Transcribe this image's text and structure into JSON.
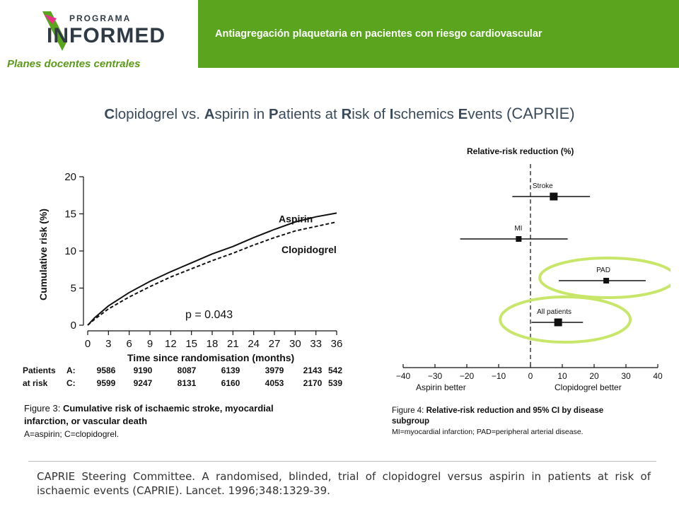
{
  "header": {
    "logo_top": "PROGRAMA",
    "logo_main": "INFORMED",
    "subtitle": "Planes docentes centrales",
    "title": "Antiagregación plaquetaria en pacientes con riesgo cardiovascular",
    "colors": {
      "accent": "#5aa51d",
      "subtitle": "#5c9a1b",
      "logo_dark": "#2f3a44"
    }
  },
  "slide_title": {
    "w1_initial": "C",
    "w1_rest": "lopidogrel vs. ",
    "w2_initial": "A",
    "w2_rest": "spirin in ",
    "w3_initial": "P",
    "w3_rest": "atients at ",
    "w4_initial": "R",
    "w4_rest": "isk of ",
    "w5_initial": "I",
    "w5_rest": "schemics ",
    "w6_initial": "E",
    "w6_rest": "vents ",
    "abbr": "(CAPRIE)"
  },
  "chart_data": [
    {
      "type": "line",
      "title": "",
      "xlabel": "Time since randomisation (months)",
      "ylabel": "Cumulative risk (%)",
      "xlim": [
        0,
        36
      ],
      "ylim": [
        0,
        20
      ],
      "xticks": [
        "0",
        "3",
        "6",
        "9",
        "12",
        "15",
        "18",
        "21",
        "24",
        "27",
        "30",
        "33",
        "36"
      ],
      "yticks": [
        "0",
        "5",
        "10",
        "15",
        "20"
      ],
      "x": [
        0,
        1,
        3,
        6,
        9,
        12,
        15,
        18,
        21,
        24,
        27,
        30,
        33,
        36
      ],
      "series": [
        {
          "name": "Aspirin",
          "values": [
            0,
            1.0,
            2.6,
            4.4,
            5.9,
            7.2,
            8.4,
            9.6,
            10.6,
            11.8,
            12.9,
            13.9,
            14.6,
            15.1
          ],
          "style": "solid"
        },
        {
          "name": "Clopidogrel",
          "values": [
            0,
            0.8,
            2.2,
            3.8,
            5.2,
            6.5,
            7.6,
            8.7,
            9.7,
            10.8,
            11.8,
            12.7,
            13.3,
            13.9
          ],
          "style": "dashed"
        }
      ],
      "annotation": "p = 0.043",
      "risk_table": {
        "header1": "Patients",
        "header2": "at risk",
        "rows": [
          {
            "label": "A:",
            "values": [
              "9586",
              "9190",
              "8087",
              "6139",
              "3979",
              "2143",
              "542"
            ]
          },
          {
            "label": "C:",
            "values": [
              "9599",
              "9247",
              "8131",
              "6160",
              "4053",
              "2170",
              "539"
            ]
          }
        ]
      },
      "caption": {
        "fig_label": "Figure 3:",
        "bold_line1": "Cumulative risk of ischaemic stroke, myocardial",
        "bold_line2": "infarction, or vascular death",
        "note": "A=aspirin; C=clopidogrel."
      }
    },
    {
      "type": "forest",
      "title": "Relative-risk reduction (%)",
      "xlim": [
        -40,
        40
      ],
      "xticks": [
        "−40",
        "−30",
        "−20",
        "−10",
        "0",
        "10",
        "20",
        "30",
        "40"
      ],
      "left_label": "Aspirin better",
      "right_label": "Clopidogrel better",
      "rows": [
        {
          "label": "Stroke",
          "estimate": 7.3,
          "ci": [
            -5.7,
            18.7
          ],
          "marker": "large"
        },
        {
          "label": "MI",
          "estimate": -3.7,
          "ci": [
            -22.1,
            11.7
          ],
          "marker": "small"
        },
        {
          "label": "PAD",
          "estimate": 23.8,
          "ci": [
            8.9,
            36.2
          ],
          "marker": "small",
          "highlighted": true
        },
        {
          "label": "All patients",
          "estimate": 8.7,
          "ci": [
            0.3,
            16.5
          ],
          "marker": "large",
          "highlighted": true
        }
      ],
      "highlight_color": "#c8e66a",
      "caption": {
        "fig_label": "Figure 4:",
        "bold_text": "Relative-risk reduction and 95% CI by disease",
        "bold_text2": "subgroup",
        "note": "MI=myocardial infarction; PAD=peripheral arterial disease."
      }
    }
  ],
  "reference": "CAPRIE Steering Committee. A randomised, blinded, trial of clopidogrel versus aspirin in patients at risk of ischaemic events (CAPRIE). Lancet. 1996;348:1329-39."
}
